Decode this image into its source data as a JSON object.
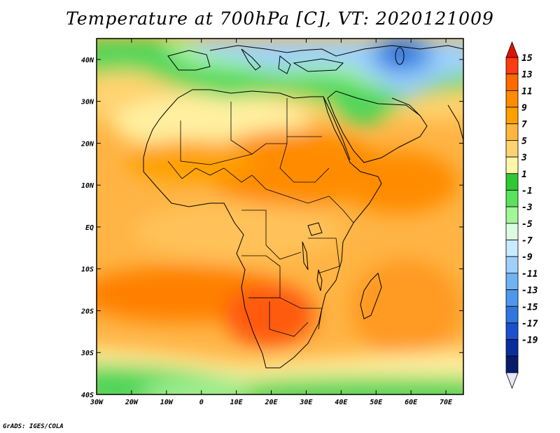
{
  "chart_data": {
    "type": "heatmap",
    "title": "Temperature at 700hPa [C], VT: 2020121009",
    "variable": "Temperature at 700hPa",
    "units": "C",
    "valid_time": "2020121009",
    "xlabel": "",
    "ylabel": "",
    "x_range": [
      -30,
      75
    ],
    "y_range": [
      -40,
      45
    ],
    "x_ticks": [
      -30,
      -20,
      -10,
      0,
      10,
      20,
      30,
      40,
      50,
      60,
      70
    ],
    "x_tick_labels": [
      "30W",
      "20W",
      "10W",
      "0",
      "10E",
      "20E",
      "30E",
      "40E",
      "50E",
      "60E",
      "70E"
    ],
    "y_ticks": [
      40,
      30,
      20,
      10,
      0,
      -10,
      -20,
      -30,
      -40
    ],
    "y_tick_labels": [
      "40N",
      "30N",
      "20N",
      "10N",
      "EQ",
      "10S",
      "20S",
      "30S",
      "40S"
    ],
    "colorbar": {
      "levels": [
        15,
        13,
        11,
        9,
        7,
        5,
        3,
        1,
        -1,
        -3,
        -5,
        -7,
        -9,
        -11,
        -13,
        -15,
        -17,
        -19
      ],
      "labels": [
        "15",
        "13",
        "11",
        "9",
        "7",
        "5",
        "3",
        "1",
        "-1",
        "-3",
        "-5",
        "-7",
        "-9",
        "-11",
        "-13",
        "-15",
        "-17",
        "-19"
      ],
      "colors": [
        "#ff3b10",
        "#ff6a00",
        "#ff8c00",
        "#ffa000",
        "#ffb63e",
        "#ffd36f",
        "#fff7a8",
        "#2fc832",
        "#5ae25a",
        "#a3f59a",
        "#ddfde0",
        "#c8ebff",
        "#9fd0fb",
        "#6fb3f3",
        "#4d98ec",
        "#2f76df",
        "#1b4fcc",
        "#0a2c9c",
        "#0a1a6a"
      ],
      "top_color": "#dd1500",
      "bottom_color": "#e6e6fa"
    },
    "features": [
      {
        "region": "North Africa / Mediterranean coast",
        "value_C": 0
      },
      {
        "region": "Black Sea / Turkey",
        "value_C": -6
      },
      {
        "region": "Caspian Sea",
        "value_C": -18
      },
      {
        "region": "Sahara interior",
        "value_C": 5
      },
      {
        "region": "Sudan / Ethiopia",
        "value_C": 11
      },
      {
        "region": "Somalia / Horn of Africa",
        "value_C": 12
      },
      {
        "region": "Central Africa / Equator",
        "value_C": 8
      },
      {
        "region": "Botswana / Kalahari",
        "value_C": 13
      },
      {
        "region": "Angola / South Atlantic",
        "value_C": 12
      },
      {
        "region": "Southern Ocean 40S",
        "value_C": 0
      },
      {
        "region": "Madagascar",
        "value_C": 10
      },
      {
        "region": "Arabian Sea",
        "value_C": 9
      }
    ]
  },
  "credit": "GrADS: IGES/COLA"
}
